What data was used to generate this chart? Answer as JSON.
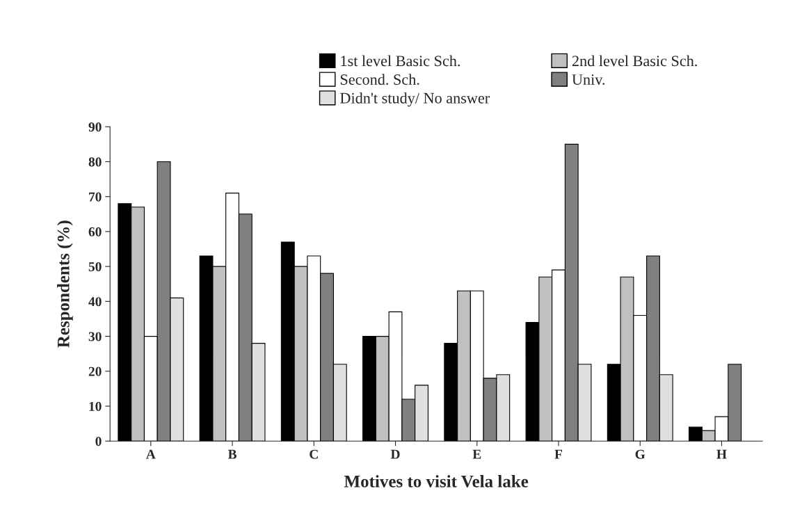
{
  "chart_data": {
    "type": "bar",
    "xlabel": "Motives to visit Vela lake",
    "ylabel": "Respondents (%)",
    "categories": [
      "A",
      "B",
      "C",
      "D",
      "E",
      "F",
      "G",
      "H"
    ],
    "series": [
      {
        "name": "1st level Basic Sch.",
        "color": "#000000",
        "values": [
          68,
          53,
          57,
          30,
          28,
          34,
          22,
          4
        ]
      },
      {
        "name": "2nd level Basic Sch.",
        "color": "#c0c0c0",
        "values": [
          67,
          50,
          50,
          30,
          43,
          47,
          47,
          3
        ]
      },
      {
        "name": "Second. Sch.",
        "color": "#ffffff",
        "values": [
          30,
          71,
          53,
          37,
          43,
          49,
          36,
          7
        ]
      },
      {
        "name": "Univ.",
        "color": "#808080",
        "values": [
          80,
          65,
          48,
          12,
          18,
          85,
          53,
          22
        ]
      },
      {
        "name": "Didn't study/ No answer",
        "color": "#e0e0e0",
        "values": [
          41,
          28,
          22,
          16,
          19,
          22,
          19,
          0
        ]
      }
    ],
    "ylim": [
      0,
      90
    ],
    "yticks": [
      0,
      10,
      20,
      30,
      40,
      50,
      60,
      70,
      80,
      90
    ],
    "grid": false,
    "legend": "top"
  }
}
